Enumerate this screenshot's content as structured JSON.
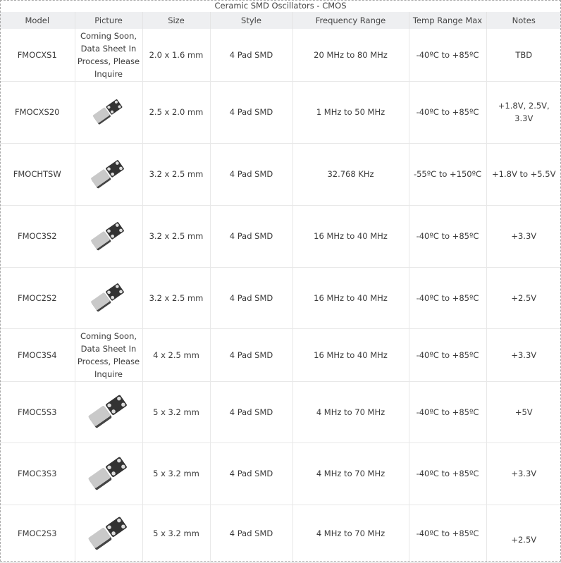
{
  "table": {
    "caption": "Ceramic SMD Oscillators - CMOS",
    "headers": [
      "Model",
      "Picture",
      "Size",
      "Style",
      "Frequency Range",
      "Temp Range Max",
      "Notes"
    ],
    "rows": [
      {
        "model": "FMOCXS1",
        "picture": "Coming Soon, Data Sheet In Process, Please Inquire",
        "size": "2.0 x 1.6 mm",
        "style": "4 Pad SMD",
        "freq": "20 MHz to 80 MHz",
        "temp": "-40ºC to +85ºC",
        "notes": "TBD"
      },
      {
        "model": "FMOCXS20",
        "picture": "",
        "size": "2.5 x 2.0 mm",
        "style": "4 Pad SMD",
        "freq": "1 MHz to 50 MHz",
        "temp": "-40ºC to +85ºC",
        "notes": "+1.8V, 2.5V, 3.3V"
      },
      {
        "model": "FMOCHTSW",
        "picture": "",
        "size": "3.2 x 2.5 mm",
        "style": "4 Pad SMD",
        "freq": "32.768 KHz",
        "temp": "-55ºC to +150ºC",
        "notes": "+1.8V to +5.5V"
      },
      {
        "model": "FMOC3S2",
        "picture": "",
        "size": "3.2 x 2.5 mm",
        "style": "4 Pad SMD",
        "freq": "16 MHz to 40 MHz",
        "temp": "-40ºC to +85ºC",
        "notes": "+3.3V"
      },
      {
        "model": "FMOC2S2",
        "picture": "",
        "size": "3.2 x 2.5 mm",
        "style": "4 Pad SMD",
        "freq": "16 MHz to 40 MHz",
        "temp": "-40ºC to +85ºC",
        "notes": "+2.5V"
      },
      {
        "model": "FMOC3S4",
        "picture": "Coming Soon, Data Sheet In Process, Please Inquire",
        "size": "4 x 2.5 mm",
        "style": "4 Pad SMD",
        "freq": "16 MHz to 40 MHz",
        "temp": "-40ºC to +85ºC",
        "notes": "+3.3V"
      },
      {
        "model": "FMOC5S3",
        "picture": "",
        "size": "5 x 3.2 mm",
        "style": "4 Pad SMD",
        "freq": "4 MHz to 70 MHz",
        "temp": "-40ºC to +85ºC",
        "notes": "+5V"
      },
      {
        "model": "FMOC3S3",
        "picture": "",
        "size": "5 x 3.2 mm",
        "style": "4 Pad SMD",
        "freq": "4 MHz to 70 MHz",
        "temp": "-40ºC to +85ºC",
        "notes": "+3.3V"
      },
      {
        "model": "FMOC2S3",
        "picture": "",
        "size": "5 x 3.2 mm",
        "style": "4 Pad SMD",
        "freq": "4 MHz to 70 MHz",
        "temp": "-40ºC to +85ºC",
        "notes": "+2.5V"
      }
    ]
  }
}
